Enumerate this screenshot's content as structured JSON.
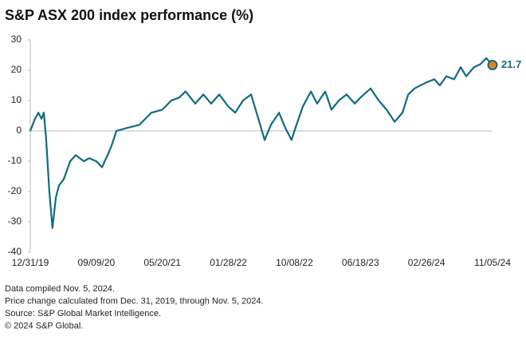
{
  "chart_data": {
    "type": "line",
    "title": "S&P ASX 200 index performance (%)",
    "x": [
      "12/31/19",
      "01/18/20",
      "01/31/20",
      "02/12/20",
      "02/21/20",
      "03/01/20",
      "03/13/20",
      "03/25/20",
      "04/07/20",
      "04/19/20",
      "05/07/20",
      "06/01/20",
      "06/22/20",
      "07/23/20",
      "08/13/20",
      "09/09/20",
      "10/01/20",
      "10/22/20",
      "11/06/20",
      "11/25/20",
      "01/06/21",
      "02/21/21",
      "04/08/21",
      "05/20/21",
      "06/23/21",
      "07/24/21",
      "08/17/21",
      "09/23/21",
      "10/24/21",
      "11/23/21",
      "12/24/21",
      "01/28/22",
      "02/23/22",
      "03/25/22",
      "04/25/22",
      "05/16/22",
      "06/16/22",
      "07/10/22",
      "08/10/22",
      "09/03/22",
      "09/27/22",
      "10/08/22",
      "11/09/22",
      "12/10/22",
      "01/03/23",
      "02/03/23",
      "02/27/23",
      "03/27/23",
      "04/26/23",
      "05/27/23",
      "06/18/23",
      "07/27/23",
      "08/27/23",
      "09/26/23",
      "10/27/23",
      "11/26/23",
      "12/18/23",
      "01/11/24",
      "02/26/24",
      "03/27/24",
      "04/17/24",
      "05/12/24",
      "06/11/24",
      "07/06/24",
      "07/27/24",
      "08/26/24",
      "09/20/24",
      "10/12/24",
      "11/05/24"
    ],
    "values": [
      0,
      4,
      6,
      4,
      6,
      -3,
      -20,
      -32,
      -22,
      -18,
      -16,
      -10,
      -8,
      -10,
      -9,
      -10,
      -12,
      -8,
      -5,
      0,
      1,
      2,
      6,
      7,
      10,
      11,
      13,
      9,
      12,
      9,
      12,
      8,
      6,
      10,
      12,
      6,
      -3,
      2,
      6,
      1,
      -3,
      0,
      8,
      13,
      9,
      13,
      7,
      10,
      12,
      9,
      11,
      14,
      10,
      7,
      3,
      6,
      12,
      14,
      16,
      17,
      15,
      18,
      17,
      21,
      18,
      21,
      22,
      24,
      21.7
    ],
    "color": "#0f6b80",
    "marker_color": "#e8821e",
    "xlim": [
      "12/31/19",
      "11/05/24"
    ],
    "xticks": [
      "12/31/19",
      "09/09/20",
      "05/20/21",
      "01/28/22",
      "10/08/22",
      "06/18/23",
      "02/26/24",
      "11/05/24"
    ],
    "ylim": [
      -40,
      30
    ],
    "yticks": [
      -40,
      -30,
      -20,
      -10,
      0,
      10,
      20,
      30
    ],
    "grid": false,
    "notes": [
      "Data compiled Nov. 5, 2024.",
      "Price change calculated from Dec. 31, 2019, through Nov. 5, 2024.",
      "Source: S&P Global Market Intelligence.",
      "© 2024 S&P Global."
    ]
  }
}
